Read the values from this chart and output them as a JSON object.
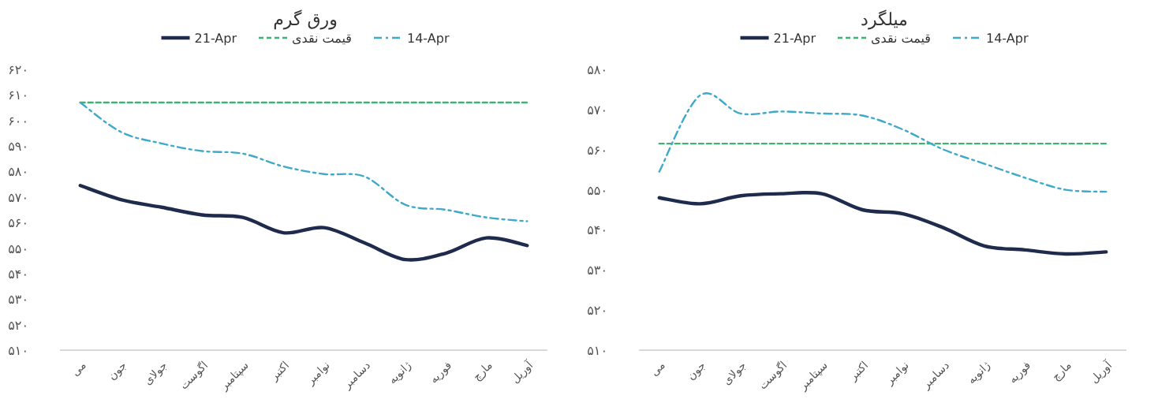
{
  "chart_data": [
    {
      "type": "line",
      "title": "ورق گرم",
      "categories": [
        "می",
        "جون",
        "جولای",
        "اگوست",
        "سپتامبر",
        "اکتبر",
        "نوامبر",
        "دسامبر",
        "ژانویه",
        "فوریه",
        "مارچ",
        "آوریل"
      ],
      "series": [
        {
          "name": "21-Apr",
          "color": "#1f2b4d",
          "line_style": "solid",
          "values": [
            574.5,
            569,
            566,
            563,
            562,
            556,
            558,
            552,
            545.5,
            548,
            554,
            551
          ]
        },
        {
          "name": "قیمت نقدی",
          "color": "#3cb371",
          "line_style": "dashed",
          "values": [
            607,
            607,
            607,
            607,
            607,
            607,
            607,
            607,
            607,
            607,
            607,
            607
          ]
        },
        {
          "name": "14-Apr",
          "color": "#3fa9c9",
          "line_style": "dashdot",
          "values": [
            607,
            595.5,
            591,
            588,
            587,
            582,
            579,
            578,
            567,
            565,
            562,
            560.5
          ]
        }
      ],
      "ylim": [
        510,
        620
      ],
      "yticks": [
        {
          "value": 510,
          "label": "۵۱۰"
        },
        {
          "value": 520,
          "label": "۵۲۰"
        },
        {
          "value": 530,
          "label": "۵۳۰"
        },
        {
          "value": 540,
          "label": "۵۴۰"
        },
        {
          "value": 550,
          "label": "۵۵۰"
        },
        {
          "value": 560,
          "label": "۵۶۰"
        },
        {
          "value": 570,
          "label": "۵۷۰"
        },
        {
          "value": 580,
          "label": "۵۸۰"
        },
        {
          "value": 590,
          "label": "۵۹۰"
        },
        {
          "value": 600,
          "label": "۶۰۰"
        },
        {
          "value": 610,
          "label": "۶۱۰"
        },
        {
          "value": 620,
          "label": "۶۲۰"
        }
      ],
      "legend": "top"
    },
    {
      "type": "line",
      "title": "میلگرد",
      "categories": [
        "می",
        "جون",
        "جولای",
        "اگوست",
        "سپتامبر",
        "اکتبر",
        "نوامبر",
        "دسامبر",
        "ژانویه",
        "فوریه",
        "مارچ",
        "آوریل"
      ],
      "series": [
        {
          "name": "21-Apr",
          "color": "#1f2b4d",
          "line_style": "solid",
          "values": [
            548,
            546.5,
            548.5,
            549,
            549,
            545,
            544,
            540.5,
            536,
            535,
            534,
            534.5
          ]
        },
        {
          "name": "قیمت نقدی",
          "color": "#3cb371",
          "line_style": "dashed",
          "values": [
            561.5,
            561.5,
            561.5,
            561.5,
            561.5,
            561.5,
            561.5,
            561.5,
            561.5,
            561.5,
            561.5,
            561.5
          ]
        },
        {
          "name": "14-Apr",
          "color": "#3fa9c9",
          "line_style": "dashdot",
          "values": [
            554.5,
            573.5,
            569,
            569.5,
            569,
            568.5,
            565,
            560,
            556.5,
            553,
            550,
            549.5
          ]
        }
      ],
      "ylim": [
        510,
        580
      ],
      "yticks": [
        {
          "value": 510,
          "label": "۵۱۰"
        },
        {
          "value": 520,
          "label": "۵۲۰"
        },
        {
          "value": 530,
          "label": "۵۳۰"
        },
        {
          "value": 540,
          "label": "۵۴۰"
        },
        {
          "value": 550,
          "label": "۵۵۰"
        },
        {
          "value": 560,
          "label": "۵۶۰"
        },
        {
          "value": 570,
          "label": "۵۷۰"
        },
        {
          "value": 580,
          "label": "۵۸۰"
        }
      ],
      "legend": "top"
    }
  ]
}
